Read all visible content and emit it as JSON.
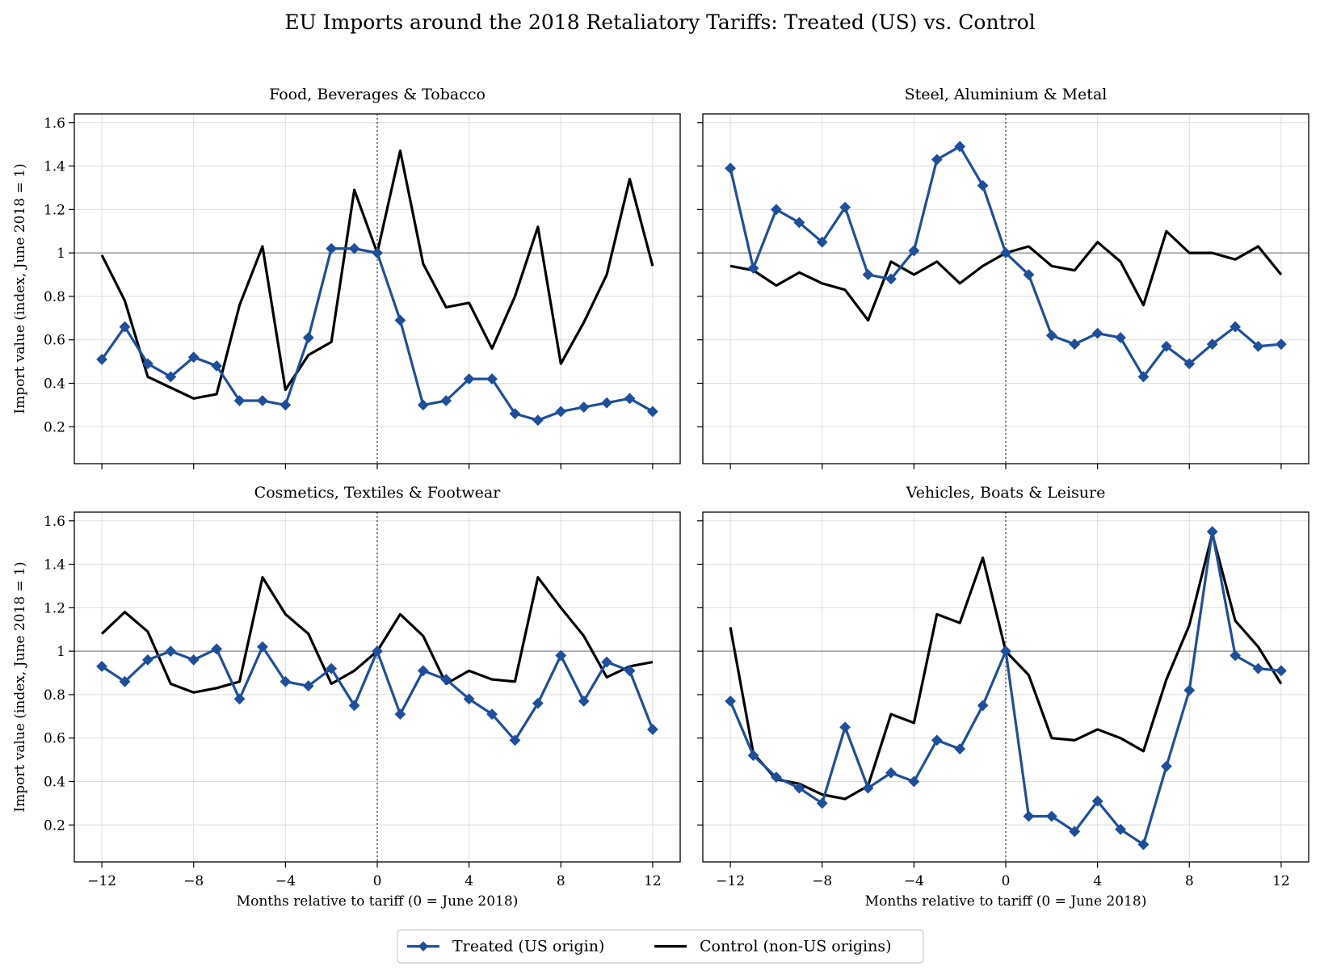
{
  "figure": {
    "title": "EU Imports around the 2018 Retaliatory Tariffs: Treated (US) vs. Control"
  },
  "legend": {
    "placement": "bottom-center",
    "entries": [
      {
        "label": "Treated (US origin)",
        "color": "#1f4e9c",
        "marker": "diamond"
      },
      {
        "label": "Control (non-US origins)",
        "color": "#000000",
        "marker": "none"
      }
    ]
  },
  "colors": {
    "treated": "#1f4e9c",
    "control": "#000000",
    "grid": "#dddddd",
    "reference": "#888888"
  },
  "chart_data": [
    {
      "type": "line",
      "title": "Food, Beverages & Tobacco",
      "xlabel": "",
      "ylabel": "Import value (index, June 2018 = 1)",
      "x": [
        -12,
        -11,
        -10,
        -9,
        -8,
        -7,
        -6,
        -5,
        -4,
        -3,
        -2,
        -1,
        0,
        1,
        2,
        3,
        4,
        5,
        6,
        7,
        8,
        9,
        10,
        11,
        12
      ],
      "xlim": [
        -13.2,
        13.2
      ],
      "ylim": [
        0.03,
        1.64
      ],
      "xticks": [
        -12,
        -8,
        -4,
        0,
        4,
        8,
        12
      ],
      "yticks": [
        0.2,
        0.4,
        0.6,
        0.8,
        1.0,
        1.2,
        1.4,
        1.6
      ],
      "grid": true,
      "reference_y": 1.0,
      "reference_x": 0,
      "series": [
        {
          "name": "Treated (US origin)",
          "values": [
            0.51,
            0.66,
            0.49,
            0.43,
            0.52,
            0.48,
            0.32,
            0.32,
            0.3,
            0.61,
            1.02,
            1.02,
            1.0,
            0.69,
            0.3,
            0.32,
            0.42,
            0.42,
            0.26,
            0.23,
            0.27,
            0.29,
            0.31,
            0.33,
            0.27
          ]
        },
        {
          "name": "Control (non-US origins)",
          "values": [
            0.99,
            0.78,
            0.43,
            0.38,
            0.33,
            0.35,
            0.76,
            1.03,
            0.37,
            0.53,
            0.59,
            1.29,
            1.0,
            1.47,
            0.95,
            0.75,
            0.77,
            0.56,
            0.8,
            1.12,
            0.49,
            0.68,
            0.9,
            1.34,
            0.94
          ]
        }
      ]
    },
    {
      "type": "line",
      "title": "Steel, Aluminium & Metal",
      "xlabel": "",
      "ylabel": "",
      "x": [
        -12,
        -11,
        -10,
        -9,
        -8,
        -7,
        -6,
        -5,
        -4,
        -3,
        -2,
        -1,
        0,
        1,
        2,
        3,
        4,
        5,
        6,
        7,
        8,
        9,
        10,
        11,
        12
      ],
      "xlim": [
        -13.2,
        13.2
      ],
      "ylim": [
        0.03,
        1.64
      ],
      "xticks": [
        -12,
        -8,
        -4,
        0,
        4,
        8,
        12
      ],
      "yticks": [
        0.2,
        0.4,
        0.6,
        0.8,
        1.0,
        1.2,
        1.4,
        1.6
      ],
      "grid": true,
      "reference_y": 1.0,
      "reference_x": 0,
      "series": [
        {
          "name": "Treated (US origin)",
          "values": [
            1.39,
            0.93,
            1.2,
            1.14,
            1.05,
            1.21,
            0.9,
            0.88,
            1.01,
            1.43,
            1.49,
            1.31,
            1.0,
            0.9,
            0.62,
            0.58,
            0.63,
            0.61,
            0.43,
            0.57,
            0.49,
            0.58,
            0.66,
            0.57,
            0.58
          ]
        },
        {
          "name": "Control (non-US origins)",
          "values": [
            0.94,
            0.92,
            0.85,
            0.91,
            0.86,
            0.83,
            0.69,
            0.96,
            0.9,
            0.96,
            0.86,
            0.94,
            1.0,
            1.03,
            0.94,
            0.92,
            1.05,
            0.96,
            0.76,
            1.1,
            1.0,
            1.0,
            0.97,
            1.03,
            0.9
          ]
        }
      ]
    },
    {
      "type": "line",
      "title": "Cosmetics, Textiles & Footwear",
      "xlabel": "Months relative to tariff (0 = June 2018)",
      "ylabel": "Import value (index, June 2018 = 1)",
      "x": [
        -12,
        -11,
        -10,
        -9,
        -8,
        -7,
        -6,
        -5,
        -4,
        -3,
        -2,
        -1,
        0,
        1,
        2,
        3,
        4,
        5,
        6,
        7,
        8,
        9,
        10,
        11,
        12
      ],
      "xlim": [
        -13.2,
        13.2
      ],
      "ylim": [
        0.03,
        1.64
      ],
      "xticks": [
        -12,
        -8,
        -4,
        0,
        4,
        8,
        12
      ],
      "yticks": [
        0.2,
        0.4,
        0.6,
        0.8,
        1.0,
        1.2,
        1.4,
        1.6
      ],
      "grid": true,
      "reference_y": 1.0,
      "reference_x": 0,
      "series": [
        {
          "name": "Treated (US origin)",
          "values": [
            0.93,
            0.86,
            0.96,
            1.0,
            0.96,
            1.01,
            0.78,
            1.02,
            0.86,
            0.84,
            0.92,
            0.75,
            1.0,
            0.71,
            0.91,
            0.87,
            0.78,
            0.71,
            0.59,
            0.76,
            0.98,
            0.77,
            0.95,
            0.91,
            0.64
          ]
        },
        {
          "name": "Control (non-US origins)",
          "values": [
            1.08,
            1.18,
            1.09,
            0.85,
            0.81,
            0.83,
            0.86,
            1.34,
            1.17,
            1.08,
            0.85,
            0.91,
            1.0,
            1.17,
            1.07,
            0.85,
            0.91,
            0.87,
            0.86,
            1.34,
            1.2,
            1.07,
            0.88,
            0.93,
            0.95
          ]
        }
      ]
    },
    {
      "type": "line",
      "title": "Vehicles, Boats & Leisure",
      "xlabel": "Months relative to tariff (0 = June 2018)",
      "ylabel": "",
      "x": [
        -12,
        -11,
        -10,
        -9,
        -8,
        -7,
        -6,
        -5,
        -4,
        -3,
        -2,
        -1,
        0,
        1,
        2,
        3,
        4,
        5,
        6,
        7,
        8,
        9,
        10,
        11,
        12
      ],
      "xlim": [
        -13.2,
        13.2
      ],
      "ylim": [
        0.03,
        1.64
      ],
      "xticks": [
        -12,
        -8,
        -4,
        0,
        4,
        8,
        12
      ],
      "yticks": [
        0.2,
        0.4,
        0.6,
        0.8,
        1.0,
        1.2,
        1.4,
        1.6
      ],
      "grid": true,
      "reference_y": 1.0,
      "reference_x": 0,
      "series": [
        {
          "name": "Treated (US origin)",
          "values": [
            0.77,
            0.52,
            0.42,
            0.37,
            0.3,
            0.65,
            0.37,
            0.44,
            0.4,
            0.59,
            0.55,
            0.75,
            1.0,
            0.24,
            0.24,
            0.17,
            0.31,
            0.18,
            0.11,
            0.47,
            0.82,
            1.55,
            0.98,
            0.92,
            0.91
          ]
        },
        {
          "name": "Control (non-US origins)",
          "values": [
            1.11,
            0.53,
            0.41,
            0.39,
            0.34,
            0.32,
            0.38,
            0.71,
            0.67,
            1.17,
            1.13,
            1.43,
            1.0,
            0.89,
            0.6,
            0.59,
            0.64,
            0.6,
            0.54,
            0.87,
            1.12,
            1.54,
            1.14,
            1.02,
            0.85
          ]
        }
      ]
    }
  ]
}
